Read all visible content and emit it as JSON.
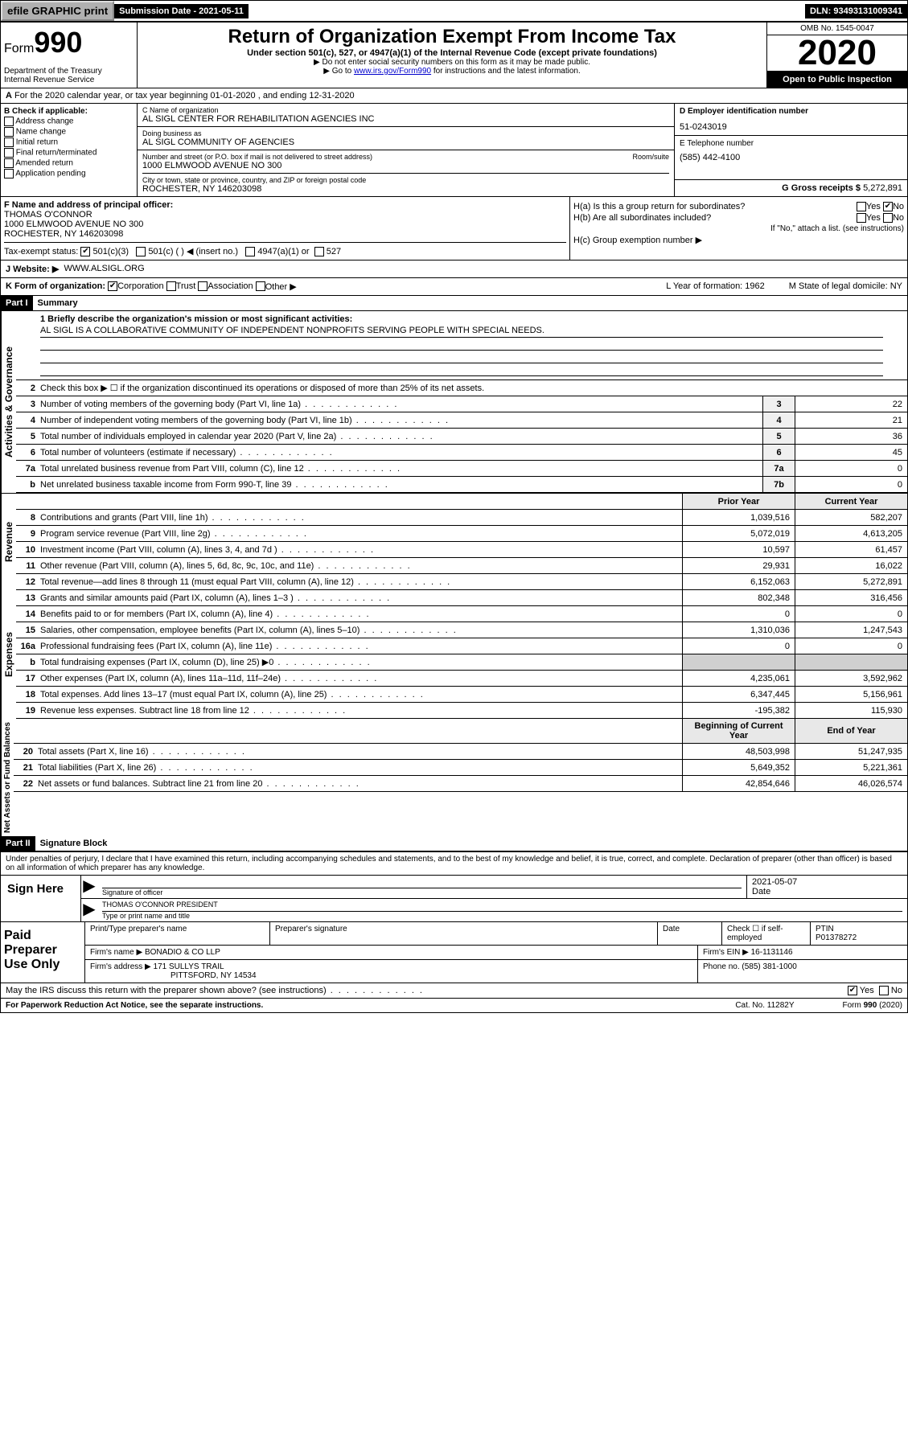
{
  "topbar": {
    "efile": "efile GRAPHIC print",
    "submission": "Submission Date - 2021-05-11",
    "dln": "DLN: 93493131009341"
  },
  "header": {
    "form_label": "Form",
    "form_num": "990",
    "dept": "Department of the Treasury\nInternal Revenue Service",
    "title": "Return of Organization Exempt From Income Tax",
    "subtitle": "Under section 501(c), 527, or 4947(a)(1) of the Internal Revenue Code (except private foundations)",
    "note1": "▶ Do not enter social security numbers on this form as it may be made public.",
    "note2_pre": "▶ Go to ",
    "note2_link": "www.irs.gov/Form990",
    "note2_post": " for instructions and the latest information.",
    "omb": "OMB No. 1545-0047",
    "year": "2020",
    "inspection": "Open to Public Inspection"
  },
  "lineA": "For the 2020 calendar year, or tax year beginning 01-01-2020    , and ending 12-31-2020",
  "colB": {
    "label": "B Check if applicable:",
    "opts": [
      "Address change",
      "Name change",
      "Initial return",
      "Final return/terminated",
      "Amended return",
      "Application pending"
    ]
  },
  "colC": {
    "name_label": "C Name of organization",
    "name": "AL SIGL CENTER FOR REHABILITATION AGENCIES INC",
    "dba_label": "Doing business as",
    "dba": "AL SIGL COMMUNITY OF AGENCIES",
    "street_label": "Number and street (or P.O. box if mail is not delivered to street address)",
    "room_label": "Room/suite",
    "street": "1000 ELMWOOD AVENUE NO 300",
    "city_label": "City or town, state or province, country, and ZIP or foreign postal code",
    "city": "ROCHESTER, NY  146203098"
  },
  "colD": {
    "label": "D Employer identification number",
    "val": "51-0243019"
  },
  "colE": {
    "label": "E Telephone number",
    "val": "(585) 442-4100"
  },
  "colG": {
    "label": "G Gross receipts $",
    "val": "5,272,891"
  },
  "colF": {
    "label": "F  Name and address of principal officer:",
    "name": "THOMAS O'CONNOR",
    "addr1": "1000 ELMWOOD AVENUE NO 300",
    "addr2": "ROCHESTER, NY  146203098"
  },
  "colH": {
    "a": "H(a)  Is this a group return for subordinates?",
    "b": "H(b)  Are all subordinates included?",
    "b_note": "If \"No,\" attach a list. (see instructions)",
    "c": "H(c)  Group exemption number ▶"
  },
  "taxexempt": {
    "label": "Tax-exempt status:",
    "c3": "501(c)(3)",
    "c": "501(c) (  ) ◀ (insert no.)",
    "a1": "4947(a)(1) or",
    "527": "527"
  },
  "rowJ": {
    "label": "J  Website: ▶",
    "val": "WWW.ALSIGL.ORG"
  },
  "rowK": {
    "label": "K Form of organization:",
    "opts": [
      "Corporation",
      "Trust",
      "Association",
      "Other ▶"
    ],
    "L": "L Year of formation: 1962",
    "M": "M State of legal domicile: NY"
  },
  "part1": {
    "header": "Part I",
    "title": "Summary",
    "side1": "Activities & Governance",
    "side2": "Revenue",
    "side3": "Expenses",
    "side4": "Net Assets or Fund Balances",
    "l1_label": "1  Briefly describe the organization's mission or most significant activities:",
    "l1_val": "AL SIGL IS A COLLABORATIVE COMMUNITY OF INDEPENDENT NONPROFITS SERVING PEOPLE WITH SPECIAL NEEDS.",
    "l2": "Check this box ▶ ☐  if the organization discontinued its operations or disposed of more than 25% of its net assets.",
    "lines_gov": [
      {
        "n": "3",
        "d": "Number of voting members of the governing body (Part VI, line 1a)",
        "b": "3",
        "v": "22"
      },
      {
        "n": "4",
        "d": "Number of independent voting members of the governing body (Part VI, line 1b)",
        "b": "4",
        "v": "21"
      },
      {
        "n": "5",
        "d": "Total number of individuals employed in calendar year 2020 (Part V, line 2a)",
        "b": "5",
        "v": "36"
      },
      {
        "n": "6",
        "d": "Total number of volunteers (estimate if necessary)",
        "b": "6",
        "v": "45"
      },
      {
        "n": "7a",
        "d": "Total unrelated business revenue from Part VIII, column (C), line 12",
        "b": "7a",
        "v": "0"
      },
      {
        "n": "b",
        "d": "Net unrelated business taxable income from Form 990-T, line 39",
        "b": "7b",
        "v": "0"
      }
    ],
    "col_prior": "Prior Year",
    "col_curr": "Current Year",
    "lines_rev": [
      {
        "n": "8",
        "d": "Contributions and grants (Part VIII, line 1h)",
        "p": "1,039,516",
        "c": "582,207"
      },
      {
        "n": "9",
        "d": "Program service revenue (Part VIII, line 2g)",
        "p": "5,072,019",
        "c": "4,613,205"
      },
      {
        "n": "10",
        "d": "Investment income (Part VIII, column (A), lines 3, 4, and 7d )",
        "p": "10,597",
        "c": "61,457"
      },
      {
        "n": "11",
        "d": "Other revenue (Part VIII, column (A), lines 5, 6d, 8c, 9c, 10c, and 11e)",
        "p": "29,931",
        "c": "16,022"
      },
      {
        "n": "12",
        "d": "Total revenue—add lines 8 through 11 (must equal Part VIII, column (A), line 12)",
        "p": "6,152,063",
        "c": "5,272,891"
      }
    ],
    "lines_exp": [
      {
        "n": "13",
        "d": "Grants and similar amounts paid (Part IX, column (A), lines 1–3 )",
        "p": "802,348",
        "c": "316,456"
      },
      {
        "n": "14",
        "d": "Benefits paid to or for members (Part IX, column (A), line 4)",
        "p": "0",
        "c": "0"
      },
      {
        "n": "15",
        "d": "Salaries, other compensation, employee benefits (Part IX, column (A), lines 5–10)",
        "p": "1,310,036",
        "c": "1,247,543"
      },
      {
        "n": "16a",
        "d": "Professional fundraising fees (Part IX, column (A), line 11e)",
        "p": "0",
        "c": "0"
      },
      {
        "n": "b",
        "d": "Total fundraising expenses (Part IX, column (D), line 25) ▶0",
        "p": "",
        "c": "",
        "grey": true
      },
      {
        "n": "17",
        "d": "Other expenses (Part IX, column (A), lines 11a–11d, 11f–24e)",
        "p": "4,235,061",
        "c": "3,592,962"
      },
      {
        "n": "18",
        "d": "Total expenses. Add lines 13–17 (must equal Part IX, column (A), line 25)",
        "p": "6,347,445",
        "c": "5,156,961"
      },
      {
        "n": "19",
        "d": "Revenue less expenses. Subtract line 18 from line 12",
        "p": "-195,382",
        "c": "115,930"
      }
    ],
    "col_begin": "Beginning of Current Year",
    "col_end": "End of Year",
    "lines_net": [
      {
        "n": "20",
        "d": "Total assets (Part X, line 16)",
        "p": "48,503,998",
        "c": "51,247,935"
      },
      {
        "n": "21",
        "d": "Total liabilities (Part X, line 26)",
        "p": "5,649,352",
        "c": "5,221,361"
      },
      {
        "n": "22",
        "d": "Net assets or fund balances. Subtract line 21 from line 20",
        "p": "42,854,646",
        "c": "46,026,574"
      }
    ]
  },
  "part2": {
    "header": "Part II",
    "title": "Signature Block",
    "intro": "Under penalties of perjury, I declare that I have examined this return, including accompanying schedules and statements, and to the best of my knowledge and belief, it is true, correct, and complete. Declaration of preparer (other than officer) is based on all information of which preparer has any knowledge.",
    "sign_here": "Sign Here",
    "sig_officer": "Signature of officer",
    "sig_date": "2021-05-07",
    "date_label": "Date",
    "officer_name": "THOMAS O'CONNOR  PRESIDENT",
    "name_label": "Type or print name and title",
    "paid_label": "Paid Preparer Use Only",
    "prep_name_label": "Print/Type preparer's name",
    "prep_sig_label": "Preparer's signature",
    "prep_date_label": "Date",
    "self_emp": "Check ☐ if self-employed",
    "ptin_label": "PTIN",
    "ptin": "P01378272",
    "firm_name_label": "Firm's name    ▶",
    "firm_name": "BONADIO & CO LLP",
    "firm_ein_label": "Firm's EIN ▶",
    "firm_ein": "16-1131146",
    "firm_addr_label": "Firm's address ▶",
    "firm_addr1": "171 SULLYS TRAIL",
    "firm_addr2": "PITTSFORD, NY  14534",
    "phone_label": "Phone no.",
    "phone": "(585) 381-1000"
  },
  "footer": {
    "discuss": "May the IRS discuss this return with the preparer shown above? (see instructions)",
    "paperwork": "For Paperwork Reduction Act Notice, see the separate instructions.",
    "cat": "Cat. No. 11282Y",
    "formno": "Form 990 (2020)"
  }
}
